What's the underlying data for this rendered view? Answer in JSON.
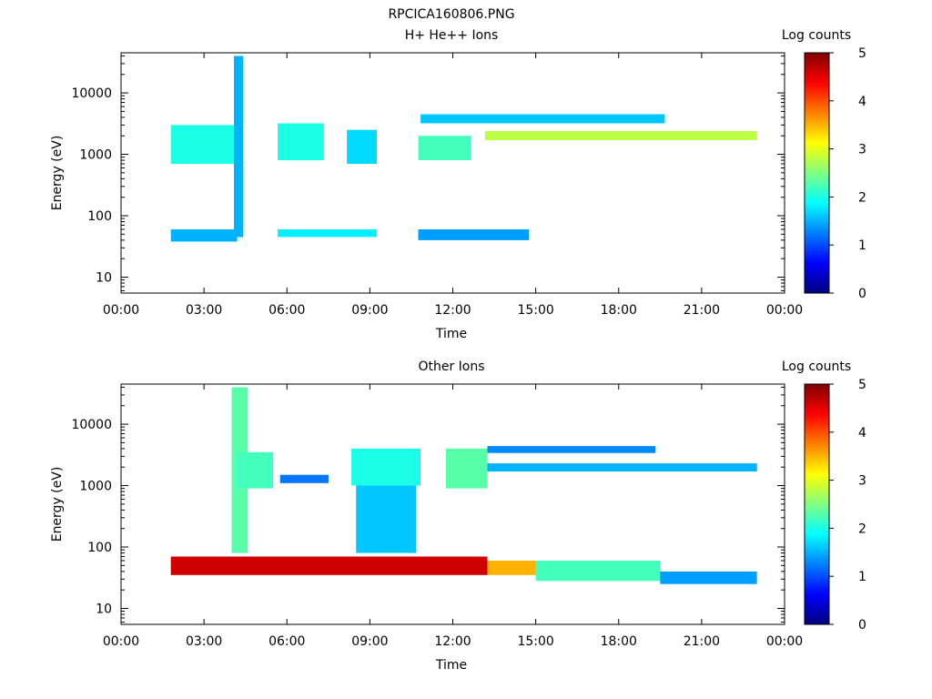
{
  "figure_title": "RPCICA160806.PNG",
  "colors": {
    "colormap": [
      "#00007f",
      "#0000ff",
      "#0080ff",
      "#00ffff",
      "#80ff80",
      "#ffff00",
      "#ff8000",
      "#ff0000",
      "#7f0000"
    ],
    "background": "#ffffff"
  },
  "chart_data": [
    {
      "type": "heatmap",
      "title": "H+ He++ Ions",
      "xlabel": "Time",
      "ylabel": "Energy (eV)",
      "x_scale": "time",
      "y_scale": "log",
      "xlim": [
        "00:00",
        "24:00"
      ],
      "ylim": [
        5.5,
        45000
      ],
      "x_ticks": [
        "00:00",
        "03:00",
        "06:00",
        "09:00",
        "12:00",
        "15:00",
        "18:00",
        "21:00",
        "00:00"
      ],
      "y_ticks": [
        "10",
        "100",
        "1000",
        "10000"
      ],
      "colorbar": {
        "label": "Log counts",
        "range": [
          0,
          5
        ],
        "ticks": [
          "0",
          "1",
          "2",
          "3",
          "4",
          "5"
        ]
      },
      "bands": [
        {
          "t_start": "01:48",
          "t_end": "04:12",
          "energy_low": 700,
          "energy_high": 3000,
          "log_counts": 2.0
        },
        {
          "t_start": "01:48",
          "t_end": "04:12",
          "energy_low": 38,
          "energy_high": 60,
          "log_counts": 1.5
        },
        {
          "t_start": "04:05",
          "t_end": "04:25",
          "energy_low": 45,
          "energy_high": 40000,
          "log_counts": 1.5
        },
        {
          "t_start": "05:40",
          "t_end": "07:20",
          "energy_low": 800,
          "energy_high": 3200,
          "log_counts": 2.0
        },
        {
          "t_start": "05:40",
          "t_end": "09:15",
          "energy_low": 45,
          "energy_high": 60,
          "log_counts": 1.8
        },
        {
          "t_start": "08:10",
          "t_end": "09:15",
          "energy_low": 700,
          "energy_high": 2500,
          "log_counts": 1.7
        },
        {
          "t_start": "10:45",
          "t_end": "12:40",
          "energy_low": 800,
          "energy_high": 2000,
          "log_counts": 2.2
        },
        {
          "t_start": "10:45",
          "t_end": "14:45",
          "energy_low": 40,
          "energy_high": 60,
          "log_counts": 1.4
        },
        {
          "t_start": "10:50",
          "t_end": "19:40",
          "energy_low": 3200,
          "energy_high": 4500,
          "log_counts": 1.6
        },
        {
          "t_start": "13:10",
          "t_end": "23:00",
          "energy_low": 1700,
          "energy_high": 2400,
          "log_counts": 2.8
        }
      ]
    },
    {
      "type": "heatmap",
      "title": "Other Ions",
      "xlabel": "Time",
      "ylabel": "Energy (eV)",
      "x_scale": "time",
      "y_scale": "log",
      "xlim": [
        "00:00",
        "24:00"
      ],
      "ylim": [
        5.5,
        45000
      ],
      "x_ticks": [
        "00:00",
        "03:00",
        "06:00",
        "09:00",
        "12:00",
        "15:00",
        "18:00",
        "21:00",
        "00:00"
      ],
      "y_ticks": [
        "10",
        "100",
        "1000",
        "10000"
      ],
      "colorbar": {
        "label": "Log counts",
        "range": [
          0,
          5
        ],
        "ticks": [
          "0",
          "1",
          "2",
          "3",
          "4",
          "5"
        ]
      },
      "bands": [
        {
          "t_start": "01:48",
          "t_end": "13:15",
          "energy_low": 35,
          "energy_high": 70,
          "log_counts": 4.6
        },
        {
          "t_start": "13:15",
          "t_end": "15:00",
          "energy_low": 35,
          "energy_high": 60,
          "log_counts": 3.5
        },
        {
          "t_start": "15:00",
          "t_end": "19:30",
          "energy_low": 28,
          "energy_high": 60,
          "log_counts": 2.2
        },
        {
          "t_start": "19:30",
          "t_end": "23:00",
          "energy_low": 25,
          "energy_high": 40,
          "log_counts": 1.4
        },
        {
          "t_start": "04:00",
          "t_end": "04:35",
          "energy_low": 80,
          "energy_high": 40000,
          "log_counts": 2.3
        },
        {
          "t_start": "04:10",
          "t_end": "05:30",
          "energy_low": 900,
          "energy_high": 3500,
          "log_counts": 2.2
        },
        {
          "t_start": "05:45",
          "t_end": "07:30",
          "energy_low": 1100,
          "energy_high": 1500,
          "log_counts": 1.2
        },
        {
          "t_start": "08:20",
          "t_end": "10:50",
          "energy_low": 1000,
          "energy_high": 4000,
          "log_counts": 2.0
        },
        {
          "t_start": "08:30",
          "t_end": "10:40",
          "energy_low": 80,
          "energy_high": 1000,
          "log_counts": 1.6
        },
        {
          "t_start": "11:45",
          "t_end": "13:15",
          "energy_low": 900,
          "energy_high": 4000,
          "log_counts": 2.3
        },
        {
          "t_start": "13:15",
          "t_end": "19:20",
          "energy_low": 3400,
          "energy_high": 4400,
          "log_counts": 1.3
        },
        {
          "t_start": "13:15",
          "t_end": "23:00",
          "energy_low": 1700,
          "energy_high": 2300,
          "log_counts": 1.5
        }
      ]
    }
  ]
}
